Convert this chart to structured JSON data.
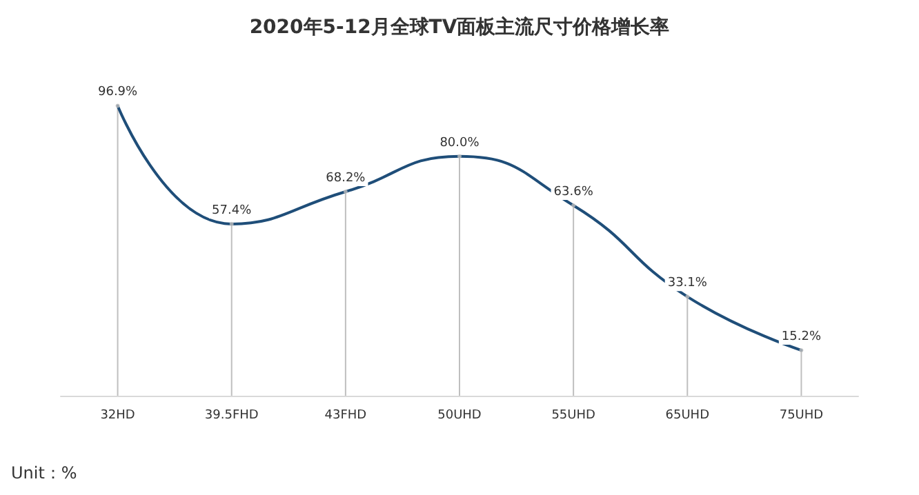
{
  "chart_data": {
    "type": "line",
    "title": "2020年5-12月全球TV面板主流尺寸价格增长率",
    "categories": [
      "32HD",
      "39.5FHD",
      "43FHD",
      "50UHD",
      "55UHD",
      "65UHD",
      "75UHD"
    ],
    "series": [
      {
        "type": "lollipop",
        "color": "#bfbfbf",
        "values": [
          96.9,
          57.4,
          68.2,
          80.0,
          63.6,
          33.1,
          15.2
        ]
      },
      {
        "color": "#1f4e79",
        "values": [
          96.9,
          57.4,
          68.2,
          80.0,
          63.6,
          33.1,
          15.2
        ],
        "value_labels": [
          "96.9%",
          "57.4%",
          "68.2%",
          "80.0%",
          "63.6%",
          "33.1%",
          "15.2%"
        ]
      }
    ],
    "marker": "none",
    "line_style": "solid",
    "grid": false,
    "tick_labels": "x",
    "annotations": [
      "Unit：%"
    ]
  }
}
